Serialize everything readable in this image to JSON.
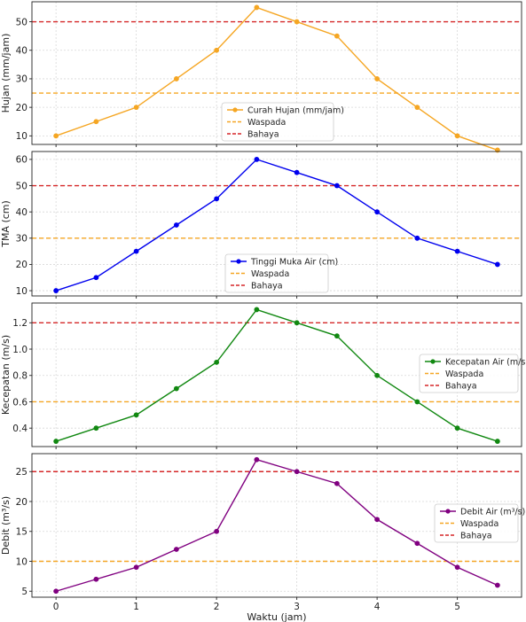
{
  "x_axis": {
    "label": "Waktu (jam)",
    "ticks": [
      0,
      1,
      2,
      3,
      4,
      5
    ],
    "xlim": [
      -0.3,
      5.8
    ]
  },
  "chart_data": [
    {
      "type": "line",
      "ylabel": "Hujan (mm/jam)",
      "ylim": [
        7,
        57
      ],
      "yticks": [
        10,
        20,
        30,
        40,
        50
      ],
      "tick_decimals": 0,
      "x": [
        0,
        0.5,
        1,
        1.5,
        2,
        2.5,
        3,
        3.5,
        4,
        4.5,
        5,
        5.5
      ],
      "series": [
        {
          "name": "Curah Hujan (mm/jam)",
          "color": "#f5a623",
          "values": [
            10,
            15,
            20,
            30,
            40,
            55,
            50,
            45,
            30,
            20,
            10,
            5
          ]
        }
      ],
      "thresholds": [
        {
          "name": "Waspada",
          "value": 25,
          "color": "#f5a623"
        },
        {
          "name": "Bahaya",
          "value": 50,
          "color": "#d62728"
        }
      ],
      "grid": true,
      "legend": "lower-center"
    },
    {
      "type": "line",
      "ylabel": "TMA (cm)",
      "ylim": [
        8,
        63
      ],
      "yticks": [
        10,
        20,
        30,
        40,
        50,
        60
      ],
      "tick_decimals": 0,
      "x": [
        0,
        0.5,
        1,
        1.5,
        2,
        2.5,
        3,
        3.5,
        4,
        4.5,
        5,
        5.5
      ],
      "series": [
        {
          "name": "Tinggi Muka Air (cm)",
          "color": "#0000ee",
          "values": [
            10,
            15,
            25,
            35,
            45,
            60,
            55,
            50,
            40,
            30,
            25,
            20
          ]
        }
      ],
      "thresholds": [
        {
          "name": "Waspada",
          "value": 30,
          "color": "#f5a623"
        },
        {
          "name": "Bahaya",
          "value": 50,
          "color": "#d62728"
        }
      ],
      "grid": true,
      "legend": "lower-center"
    },
    {
      "type": "line",
      "ylabel": "Kecepatan (m/s)",
      "ylim": [
        0.26,
        1.35
      ],
      "yticks": [
        0.4,
        0.6,
        0.8,
        1.0,
        1.2
      ],
      "tick_decimals": 1,
      "x": [
        0,
        0.5,
        1,
        1.5,
        2,
        2.5,
        3,
        3.5,
        4,
        4.5,
        5,
        5.5
      ],
      "series": [
        {
          "name": "Kecepatan Air (m/s)",
          "color": "#118811",
          "values": [
            0.3,
            0.4,
            0.5,
            0.7,
            0.9,
            1.3,
            1.2,
            1.1,
            0.8,
            0.6,
            0.4,
            0.3
          ]
        }
      ],
      "thresholds": [
        {
          "name": "Waspada",
          "value": 0.6,
          "color": "#f5a623"
        },
        {
          "name": "Bahaya",
          "value": 1.2,
          "color": "#d62728"
        }
      ],
      "grid": true,
      "legend": "center-right"
    },
    {
      "type": "line",
      "ylabel": "Debit (m³/s)",
      "ylim": [
        4,
        28
      ],
      "yticks": [
        5,
        10,
        15,
        20,
        25
      ],
      "tick_decimals": 0,
      "x": [
        0,
        0.5,
        1,
        1.5,
        2,
        2.5,
        3,
        3.5,
        4,
        4.5,
        5,
        5.5
      ],
      "series": [
        {
          "name": "Debit Air (m³/s)",
          "color": "#800080",
          "values": [
            5,
            7,
            9,
            12,
            15,
            27,
            25,
            23,
            17,
            13,
            9,
            6
          ]
        }
      ],
      "thresholds": [
        {
          "name": "Waspada",
          "value": 10,
          "color": "#f5a623"
        },
        {
          "name": "Bahaya",
          "value": 25,
          "color": "#d62728"
        }
      ],
      "grid": true,
      "legend": "center-right"
    }
  ]
}
